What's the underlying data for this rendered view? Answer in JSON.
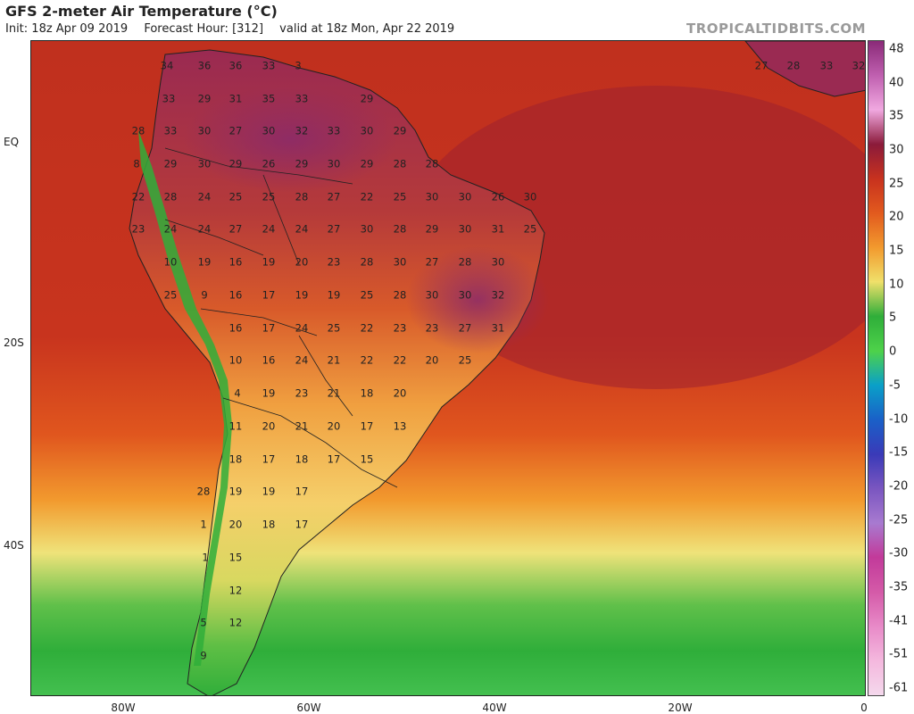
{
  "header": {
    "title": "GFS 2-meter Air Temperature (°C)",
    "init": "Init: 18z Apr 09 2019",
    "forecast_hour": "Forecast Hour: [312]",
    "valid": "valid at 18z Mon, Apr 22 2019",
    "brand": "TROPICALTIDBITS.COM"
  },
  "axes": {
    "lat_labels": [
      "EQ",
      "20S",
      "40S"
    ],
    "lon_labels": [
      "80W",
      "60W",
      "40W",
      "20W",
      "0"
    ]
  },
  "colorbar": {
    "labels": [
      "48",
      "40",
      "35",
      "30",
      "25",
      "20",
      "15",
      "10",
      "5",
      "0",
      "-5",
      "-10",
      "-15",
      "-20",
      "-25",
      "-30",
      "-35",
      "-41",
      "-51",
      "-61"
    ],
    "colors": [
      "#8a2a78",
      "#c060b0",
      "#f0a8e0",
      "#8b1a3a",
      "#c8321e",
      "#e25a1e",
      "#f29a2e",
      "#f0e06a",
      "#2fae3a",
      "#4ed24a",
      "#0aa0c8",
      "#1a60c8",
      "#3a3ab8",
      "#7a56c0",
      "#a87ad0",
      "#c23a9a",
      "#d45aa8",
      "#e88ac8",
      "#f4b8de",
      "#f4d8ec"
    ]
  },
  "temperature_labels": [
    {
      "v": "34",
      "c": [
        186,
        73
      ]
    },
    {
      "v": "36",
      "c": [
        228,
        73
      ]
    },
    {
      "v": "36",
      "c": [
        263,
        73
      ]
    },
    {
      "v": "33",
      "c": [
        300,
        73
      ]
    },
    {
      "v": "3",
      "c": [
        333,
        73
      ]
    },
    {
      "v": "33",
      "c": [
        188,
        110
      ]
    },
    {
      "v": "29",
      "c": [
        228,
        110
      ]
    },
    {
      "v": "31",
      "c": [
        263,
        110
      ]
    },
    {
      "v": "35",
      "c": [
        300,
        110
      ]
    },
    {
      "v": "33",
      "c": [
        337,
        110
      ]
    },
    {
      "v": "29",
      "c": [
        410,
        110
      ]
    },
    {
      "v": "28",
      "c": [
        154,
        146
      ]
    },
    {
      "v": "33",
      "c": [
        190,
        146
      ]
    },
    {
      "v": "30",
      "c": [
        228,
        146
      ]
    },
    {
      "v": "27",
      "c": [
        263,
        146
      ]
    },
    {
      "v": "30",
      "c": [
        300,
        146
      ]
    },
    {
      "v": "32",
      "c": [
        337,
        146
      ]
    },
    {
      "v": "33",
      "c": [
        373,
        146
      ]
    },
    {
      "v": "30",
      "c": [
        410,
        146
      ]
    },
    {
      "v": "29",
      "c": [
        447,
        146
      ]
    },
    {
      "v": "8",
      "c": [
        152,
        183
      ]
    },
    {
      "v": "29",
      "c": [
        190,
        183
      ]
    },
    {
      "v": "30",
      "c": [
        228,
        183
      ]
    },
    {
      "v": "29",
      "c": [
        263,
        183
      ]
    },
    {
      "v": "26",
      "c": [
        300,
        183
      ]
    },
    {
      "v": "29",
      "c": [
        337,
        183
      ]
    },
    {
      "v": "30",
      "c": [
        373,
        183
      ]
    },
    {
      "v": "29",
      "c": [
        410,
        183
      ]
    },
    {
      "v": "28",
      "c": [
        447,
        183
      ]
    },
    {
      "v": "28",
      "c": [
        483,
        183
      ]
    },
    {
      "v": "22",
      "c": [
        154,
        220
      ]
    },
    {
      "v": "28",
      "c": [
        190,
        220
      ]
    },
    {
      "v": "24",
      "c": [
        228,
        220
      ]
    },
    {
      "v": "25",
      "c": [
        263,
        220
      ]
    },
    {
      "v": "25",
      "c": [
        300,
        220
      ]
    },
    {
      "v": "28",
      "c": [
        337,
        220
      ]
    },
    {
      "v": "27",
      "c": [
        373,
        220
      ]
    },
    {
      "v": "22",
      "c": [
        410,
        220
      ]
    },
    {
      "v": "25",
      "c": [
        447,
        220
      ]
    },
    {
      "v": "30",
      "c": [
        483,
        220
      ]
    },
    {
      "v": "30",
      "c": [
        520,
        220
      ]
    },
    {
      "v": "26",
      "c": [
        557,
        220
      ]
    },
    {
      "v": "30",
      "c": [
        593,
        220
      ]
    },
    {
      "v": "23",
      "c": [
        154,
        256
      ]
    },
    {
      "v": "24",
      "c": [
        190,
        256
      ]
    },
    {
      "v": "24",
      "c": [
        228,
        256
      ]
    },
    {
      "v": "27",
      "c": [
        263,
        256
      ]
    },
    {
      "v": "24",
      "c": [
        300,
        256
      ]
    },
    {
      "v": "24",
      "c": [
        337,
        256
      ]
    },
    {
      "v": "27",
      "c": [
        373,
        256
      ]
    },
    {
      "v": "30",
      "c": [
        410,
        256
      ]
    },
    {
      "v": "28",
      "c": [
        447,
        256
      ]
    },
    {
      "v": "29",
      "c": [
        483,
        256
      ]
    },
    {
      "v": "30",
      "c": [
        520,
        256
      ]
    },
    {
      "v": "31",
      "c": [
        557,
        256
      ]
    },
    {
      "v": "25",
      "c": [
        593,
        256
      ]
    },
    {
      "v": "10",
      "c": [
        190,
        293
      ]
    },
    {
      "v": "19",
      "c": [
        228,
        293
      ]
    },
    {
      "v": "16",
      "c": [
        263,
        293
      ]
    },
    {
      "v": "19",
      "c": [
        300,
        293
      ]
    },
    {
      "v": "20",
      "c": [
        337,
        293
      ]
    },
    {
      "v": "23",
      "c": [
        373,
        293
      ]
    },
    {
      "v": "28",
      "c": [
        410,
        293
      ]
    },
    {
      "v": "30",
      "c": [
        447,
        293
      ]
    },
    {
      "v": "27",
      "c": [
        483,
        293
      ]
    },
    {
      "v": "28",
      "c": [
        520,
        293
      ]
    },
    {
      "v": "30",
      "c": [
        557,
        293
      ]
    },
    {
      "v": "25",
      "c": [
        190,
        330
      ]
    },
    {
      "v": "9",
      "c": [
        228,
        330
      ]
    },
    {
      "v": "16",
      "c": [
        263,
        330
      ]
    },
    {
      "v": "17",
      "c": [
        300,
        330
      ]
    },
    {
      "v": "19",
      "c": [
        337,
        330
      ]
    },
    {
      "v": "19",
      "c": [
        373,
        330
      ]
    },
    {
      "v": "25",
      "c": [
        410,
        330
      ]
    },
    {
      "v": "28",
      "c": [
        447,
        330
      ]
    },
    {
      "v": "30",
      "c": [
        483,
        330
      ]
    },
    {
      "v": "30",
      "c": [
        520,
        330
      ]
    },
    {
      "v": "32",
      "c": [
        557,
        330
      ]
    },
    {
      "v": "16",
      "c": [
        263,
        367
      ]
    },
    {
      "v": "17",
      "c": [
        300,
        367
      ]
    },
    {
      "v": "24",
      "c": [
        337,
        367
      ]
    },
    {
      "v": "25",
      "c": [
        373,
        367
      ]
    },
    {
      "v": "22",
      "c": [
        410,
        367
      ]
    },
    {
      "v": "23",
      "c": [
        447,
        367
      ]
    },
    {
      "v": "23",
      "c": [
        483,
        367
      ]
    },
    {
      "v": "27",
      "c": [
        520,
        367
      ]
    },
    {
      "v": "31",
      "c": [
        557,
        367
      ]
    },
    {
      "v": "10",
      "c": [
        263,
        403
      ]
    },
    {
      "v": "16",
      "c": [
        300,
        403
      ]
    },
    {
      "v": "24",
      "c": [
        337,
        403
      ]
    },
    {
      "v": "21",
      "c": [
        373,
        403
      ]
    },
    {
      "v": "22",
      "c": [
        410,
        403
      ]
    },
    {
      "v": "22",
      "c": [
        447,
        403
      ]
    },
    {
      "v": "20",
      "c": [
        483,
        403
      ]
    },
    {
      "v": "25",
      "c": [
        520,
        403
      ]
    },
    {
      "v": "4",
      "c": [
        265,
        440
      ]
    },
    {
      "v": "19",
      "c": [
        300,
        440
      ]
    },
    {
      "v": "23",
      "c": [
        337,
        440
      ]
    },
    {
      "v": "21",
      "c": [
        373,
        440
      ]
    },
    {
      "v": "18",
      "c": [
        410,
        440
      ]
    },
    {
      "v": "20",
      "c": [
        447,
        440
      ]
    },
    {
      "v": "11",
      "c": [
        263,
        477
      ]
    },
    {
      "v": "20",
      "c": [
        300,
        477
      ]
    },
    {
      "v": "21",
      "c": [
        337,
        477
      ]
    },
    {
      "v": "20",
      "c": [
        373,
        477
      ]
    },
    {
      "v": "17",
      "c": [
        410,
        477
      ]
    },
    {
      "v": "13",
      "c": [
        447,
        477
      ]
    },
    {
      "v": "18",
      "c": [
        263,
        514
      ]
    },
    {
      "v": "17",
      "c": [
        300,
        514
      ]
    },
    {
      "v": "18",
      "c": [
        337,
        514
      ]
    },
    {
      "v": "17",
      "c": [
        373,
        514
      ]
    },
    {
      "v": "15",
      "c": [
        410,
        514
      ]
    },
    {
      "v": "28",
      "c": [
        227,
        550
      ]
    },
    {
      "v": "19",
      "c": [
        263,
        550
      ]
    },
    {
      "v": "19",
      "c": [
        300,
        550
      ]
    },
    {
      "v": "17",
      "c": [
        337,
        550
      ]
    },
    {
      "v": "1",
      "c": [
        227,
        587
      ]
    },
    {
      "v": "20",
      "c": [
        263,
        587
      ]
    },
    {
      "v": "18",
      "c": [
        300,
        587
      ]
    },
    {
      "v": "17",
      "c": [
        337,
        587
      ]
    },
    {
      "v": "1",
      "c": [
        229,
        624
      ]
    },
    {
      "v": "15",
      "c": [
        263,
        624
      ]
    },
    {
      "v": "12",
      "c": [
        263,
        661
      ]
    },
    {
      "v": "5",
      "c": [
        227,
        697
      ]
    },
    {
      "v": "12",
      "c": [
        263,
        697
      ]
    },
    {
      "v": "9",
      "c": [
        227,
        734
      ]
    },
    {
      "v": "27",
      "c": [
        852,
        73
      ]
    },
    {
      "v": "28",
      "c": [
        888,
        73
      ]
    },
    {
      "v": "33",
      "c": [
        925,
        73
      ]
    },
    {
      "v": "32",
      "c": [
        961,
        73
      ]
    }
  ]
}
